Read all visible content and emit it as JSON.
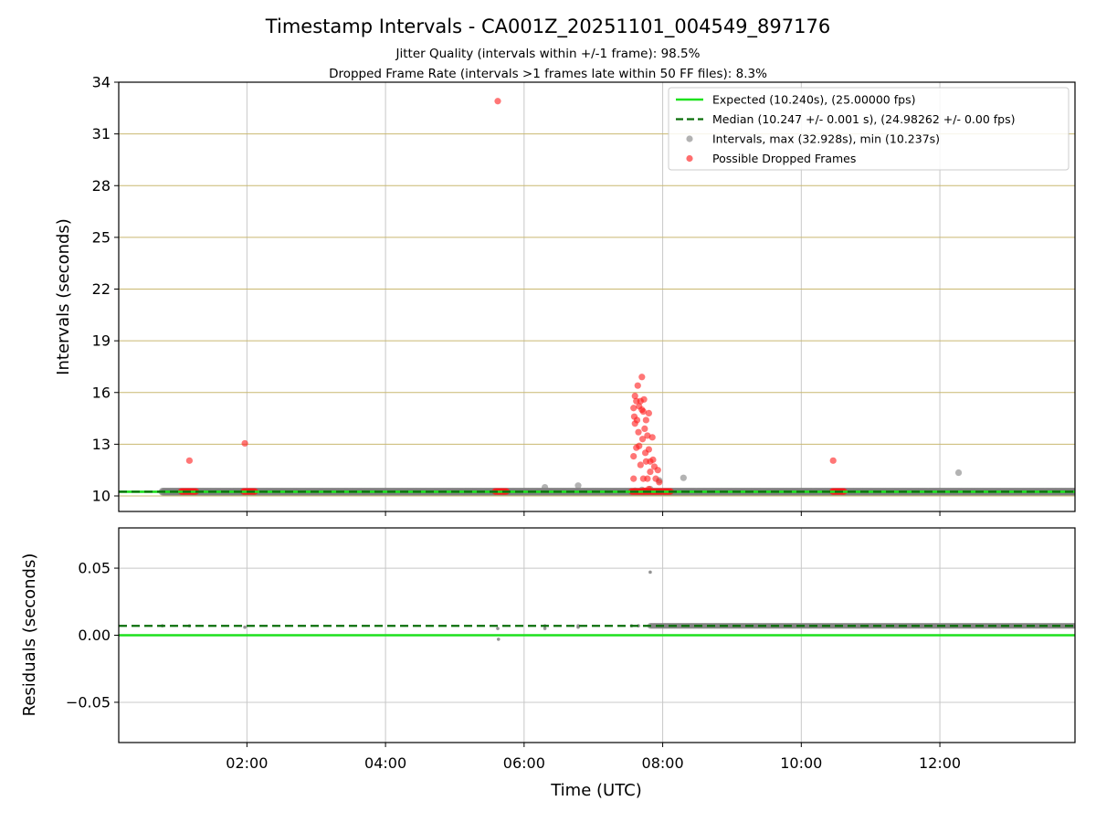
{
  "chart_data": {
    "type": "scatter",
    "title": "Timestamp Intervals - CA001Z_20251101_004549_897176",
    "subtitle_lines": [
      "Jitter Quality (intervals within +/-1 frame): 98.5%",
      "Dropped Frame Rate (intervals >1 frames late within 50 FF files): 8.3%"
    ],
    "xlabel": "Time (UTC)",
    "x_ticks": [
      "02:00",
      "04:00",
      "06:00",
      "08:00",
      "10:00",
      "12:00"
    ],
    "x_tick_hours": [
      2,
      4,
      6,
      8,
      10,
      12
    ],
    "xlim_hours": [
      0.15,
      13.95
    ],
    "panels": [
      {
        "ylabel": "Intervals (seconds)",
        "ylim": [
          9.1,
          34
        ],
        "yticks": [
          10,
          13,
          16,
          19,
          22,
          25,
          28,
          31,
          34
        ],
        "ytick_labels": [
          "10",
          "13",
          "16",
          "19",
          "22",
          "25",
          "28",
          "31",
          "34"
        ],
        "grid": "horizontal-gold, vertical-gray",
        "expected_line": 10.24,
        "median_line": 10.247,
        "dense_band": {
          "x_start": 0.78,
          "x_end": 13.95,
          "y": 10.247
        },
        "intervals_points": [
          [
            6.3,
            10.5
          ],
          [
            6.78,
            10.6
          ],
          [
            7.95,
            10.9
          ],
          [
            8.3,
            11.05
          ],
          [
            12.27,
            11.35
          ],
          [
            7.6,
            10.3
          ],
          [
            7.7,
            10.35
          ],
          [
            7.82,
            10.4
          ]
        ],
        "dropped_points": [
          [
            1.17,
            12.05
          ],
          [
            1.97,
            13.05
          ],
          [
            5.62,
            32.9
          ],
          [
            10.46,
            12.05
          ],
          [
            7.58,
            15.1
          ],
          [
            7.59,
            14.6
          ],
          [
            7.6,
            14.2
          ],
          [
            7.6,
            15.8
          ],
          [
            7.62,
            15.5
          ],
          [
            7.62,
            12.8
          ],
          [
            7.58,
            11.0
          ],
          [
            7.58,
            12.3
          ],
          [
            7.63,
            14.4
          ],
          [
            7.64,
            16.4
          ],
          [
            7.65,
            13.7
          ],
          [
            7.66,
            15.2
          ],
          [
            7.66,
            12.9
          ],
          [
            7.68,
            11.8
          ],
          [
            7.68,
            15.5
          ],
          [
            7.7,
            15.0
          ],
          [
            7.7,
            16.9
          ],
          [
            7.71,
            13.3
          ],
          [
            7.72,
            14.9
          ],
          [
            7.72,
            11.0
          ],
          [
            7.73,
            15.6
          ],
          [
            7.74,
            13.9
          ],
          [
            7.75,
            12.5
          ],
          [
            7.76,
            12.0
          ],
          [
            7.76,
            14.4
          ],
          [
            7.78,
            13.5
          ],
          [
            7.78,
            11.0
          ],
          [
            7.8,
            12.7
          ],
          [
            7.8,
            14.8
          ],
          [
            7.82,
            11.4
          ],
          [
            7.82,
            12.0
          ],
          [
            7.85,
            13.4
          ],
          [
            7.86,
            12.1
          ],
          [
            7.88,
            11.7
          ],
          [
            7.9,
            11.0
          ],
          [
            7.93,
            11.5
          ],
          [
            7.95,
            10.8
          ],
          [
            7.72,
            10.3
          ],
          [
            7.75,
            10.3
          ],
          [
            7.8,
            10.4
          ]
        ],
        "dropped_baseline_clusters": [
          {
            "x_start": 1.05,
            "x_end": 1.27,
            "y": 10.26
          },
          {
            "x_start": 1.95,
            "x_end": 2.12,
            "y": 10.26
          },
          {
            "x_start": 5.58,
            "x_end": 5.75,
            "y": 10.26
          },
          {
            "x_start": 7.55,
            "x_end": 8.12,
            "y": 10.26
          },
          {
            "x_start": 10.45,
            "x_end": 10.62,
            "y": 10.26
          }
        ]
      },
      {
        "ylabel": "Residuals (seconds)",
        "ylim": [
          -0.08,
          0.08
        ],
        "yticks": [
          0.05,
          0.0,
          -0.05
        ],
        "ytick_labels": [
          "0.05",
          "0.00",
          "−0.05"
        ],
        "expected_line": 0.0,
        "median_line": 0.007,
        "residual_points": [
          [
            0.78,
            0.007
          ],
          [
            1.17,
            0.007
          ],
          [
            1.97,
            0.006
          ],
          [
            5.62,
            0.005
          ],
          [
            5.63,
            -0.003
          ],
          [
            6.3,
            0.005
          ],
          [
            6.3,
            0.007
          ],
          [
            6.78,
            0.007
          ],
          [
            6.78,
            0.006
          ],
          [
            7.55,
            0.007
          ],
          [
            7.65,
            0.007
          ],
          [
            7.82,
            0.047
          ]
        ],
        "residual_band": {
          "x_start": 7.82,
          "x_end": 13.95,
          "y": 0.007
        }
      }
    ],
    "legend": {
      "placement": "top-right",
      "entries": [
        {
          "label": "Expected (10.240s), (25.00000 fps)",
          "kind": "solid-line",
          "color": "#1ee11e"
        },
        {
          "label": "Median (10.247 +/- 0.001 s), (24.98262 +/- 0.00 fps)",
          "kind": "dashed-line",
          "color": "#0a6e0a"
        },
        {
          "label": "Intervals, max (32.928s), min (10.237s)",
          "kind": "marker",
          "color": "#888888"
        },
        {
          "label": "Possible Dropped Frames",
          "kind": "marker",
          "color": "#ff2020"
        }
      ]
    },
    "colors": {
      "expected": "#1ee11e",
      "median": "#0a6e0a",
      "intervals": "#808080",
      "dropped": "#ff1a1a",
      "hgrid_top": "#c9b870",
      "grid": "#c8c8c8"
    }
  }
}
